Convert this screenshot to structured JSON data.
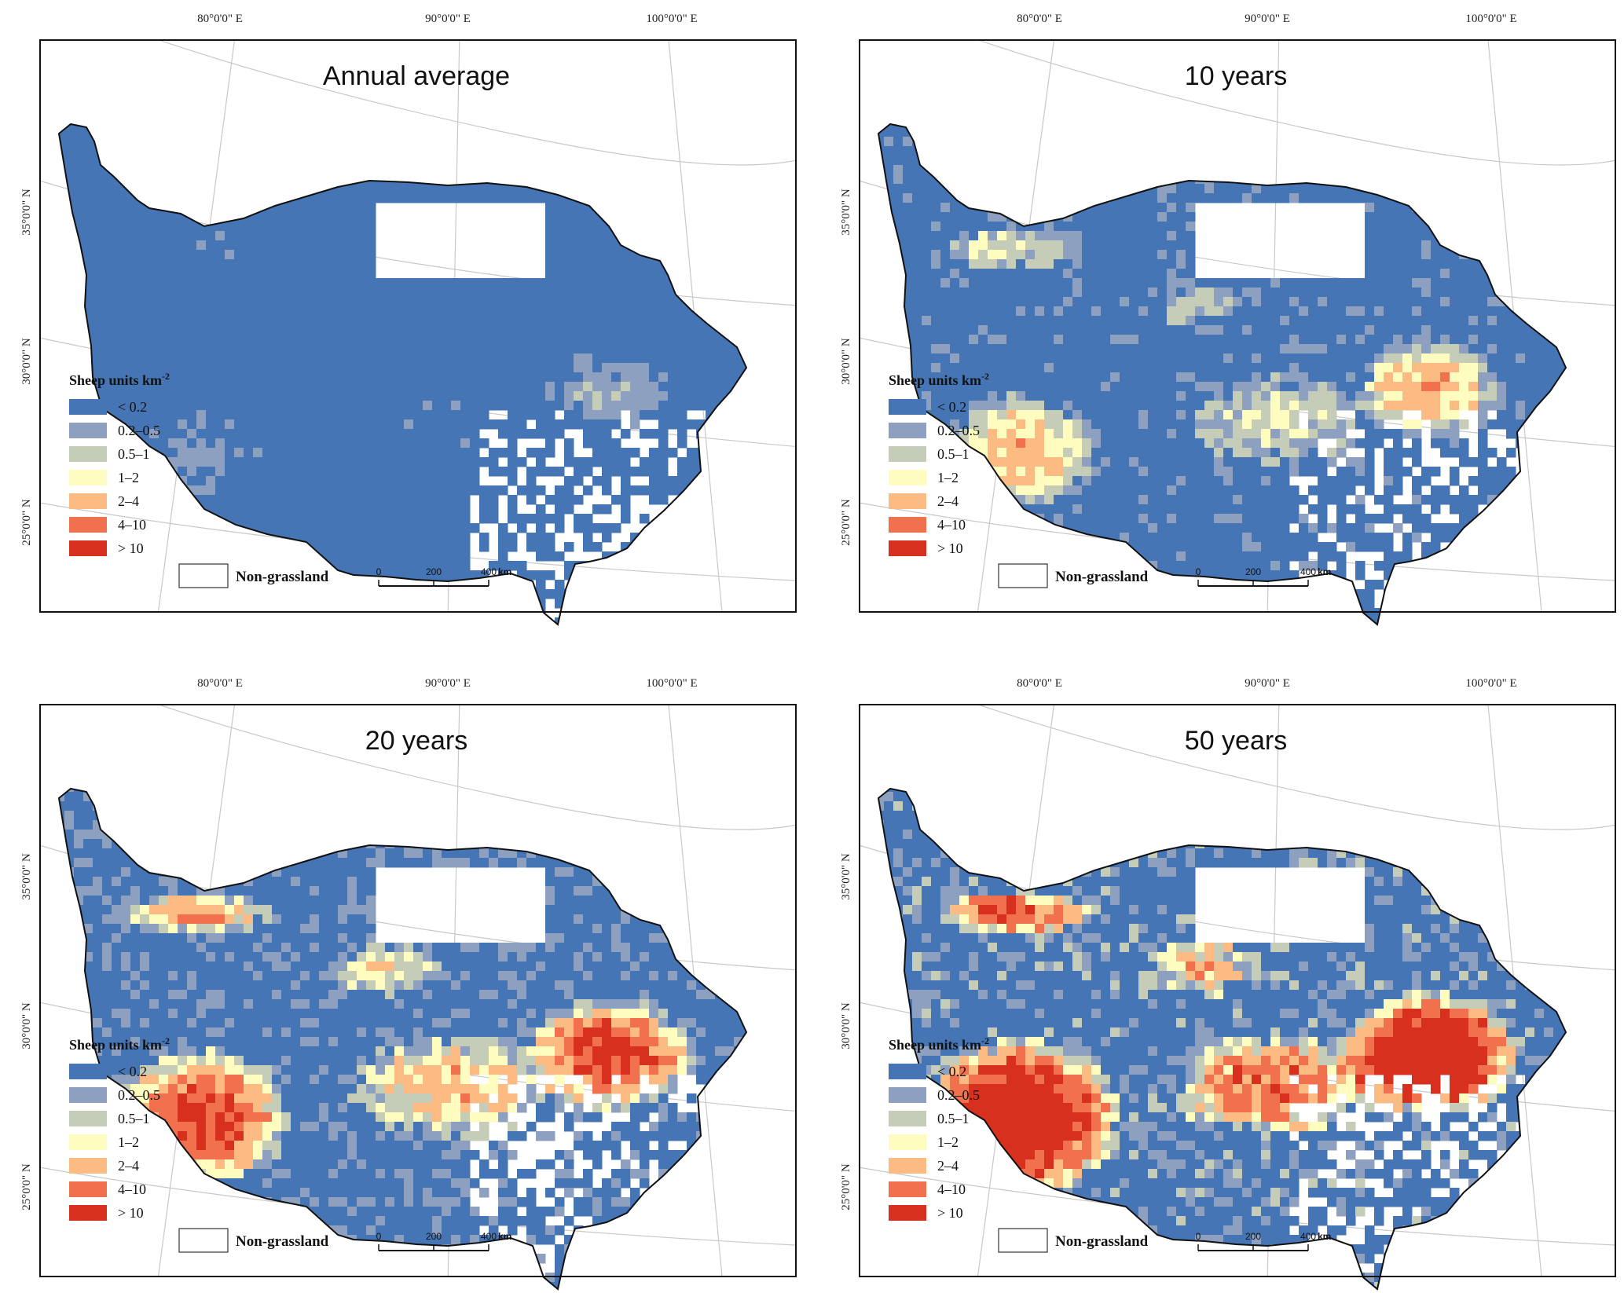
{
  "map_common": {
    "graticule_lon": [
      "80°0'0\" E",
      "90°0'0\" E",
      "100°0'0\" E"
    ],
    "graticule_lat": [
      "35°0'0\" N",
      "30°0'0\" N",
      "25°0'0\" N"
    ],
    "legend": {
      "title": "Sheep units km",
      "title_sup": "-2",
      "classes": [
        {
          "label": "< 0.2",
          "color": "#4575b4"
        },
        {
          "label": "0.2–0.5",
          "color": "#8da0c0"
        },
        {
          "label": "0.5–1",
          "color": "#c5cdb8"
        },
        {
          "label": "1–2",
          "color": "#fefcbf"
        },
        {
          "label": "2–4",
          "color": "#fdbb84"
        },
        {
          "label": "4–10",
          "color": "#f1714f"
        },
        {
          "label": "> 10",
          "color": "#d7301f"
        }
      ],
      "non_grassland": "Non-grassland"
    },
    "scale_bar": {
      "ticks": [
        "0",
        "200",
        "400"
      ],
      "unit": "km"
    }
  },
  "panels": [
    {
      "title": "Annual average",
      "hotspot_level": 0
    },
    {
      "title": "10 years",
      "hotspot_level": 1
    },
    {
      "title": "20 years",
      "hotspot_level": 2
    },
    {
      "title": "50 years",
      "hotspot_level": 3
    }
  ]
}
